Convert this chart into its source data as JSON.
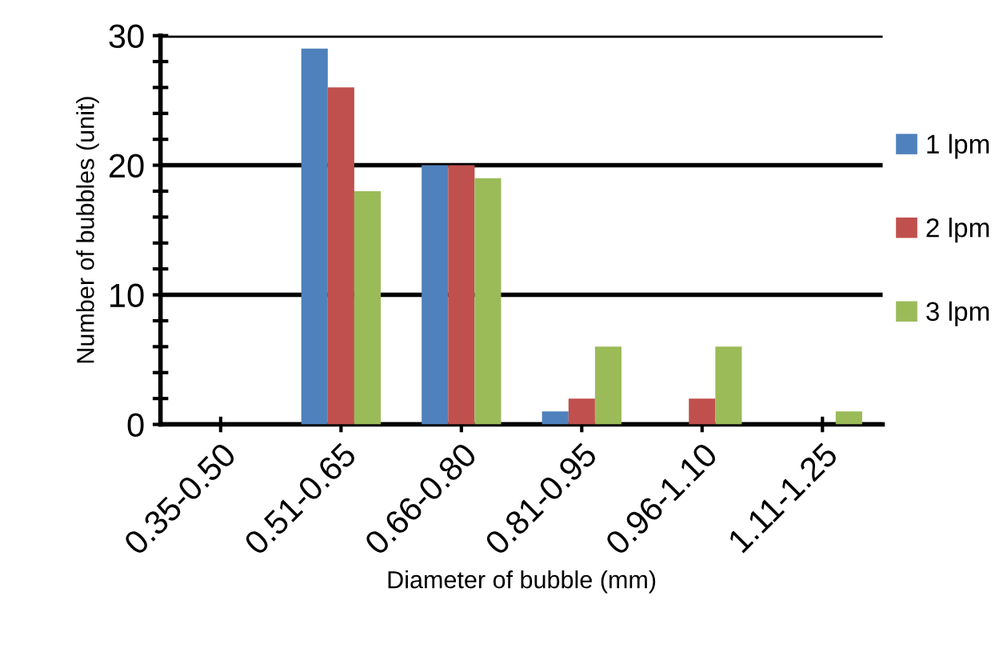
{
  "chart_data": {
    "type": "bar",
    "xlabel": "Diameter of bubble (mm)",
    "ylabel": "Number of bubbles (unit)",
    "categories": [
      "0.35-0.50",
      "0.51-0.65",
      "0.66-0.80",
      "0.81-0.95",
      "0.96-1.10",
      "1.11-1.25"
    ],
    "series": [
      {
        "name": "1 lpm",
        "color": "#4f81bd",
        "values": [
          0,
          29,
          20,
          1,
          0,
          0
        ]
      },
      {
        "name": "2 lpm",
        "color": "#c0504d",
        "values": [
          0,
          26,
          20,
          2,
          2,
          0
        ]
      },
      {
        "name": "3 lpm",
        "color": "#9bbb59",
        "values": [
          0,
          18,
          19,
          6,
          6,
          1
        ]
      }
    ],
    "ylim": [
      0,
      30
    ],
    "yticks": [
      0,
      10,
      20,
      30
    ],
    "grid": "y",
    "legend": "right"
  }
}
